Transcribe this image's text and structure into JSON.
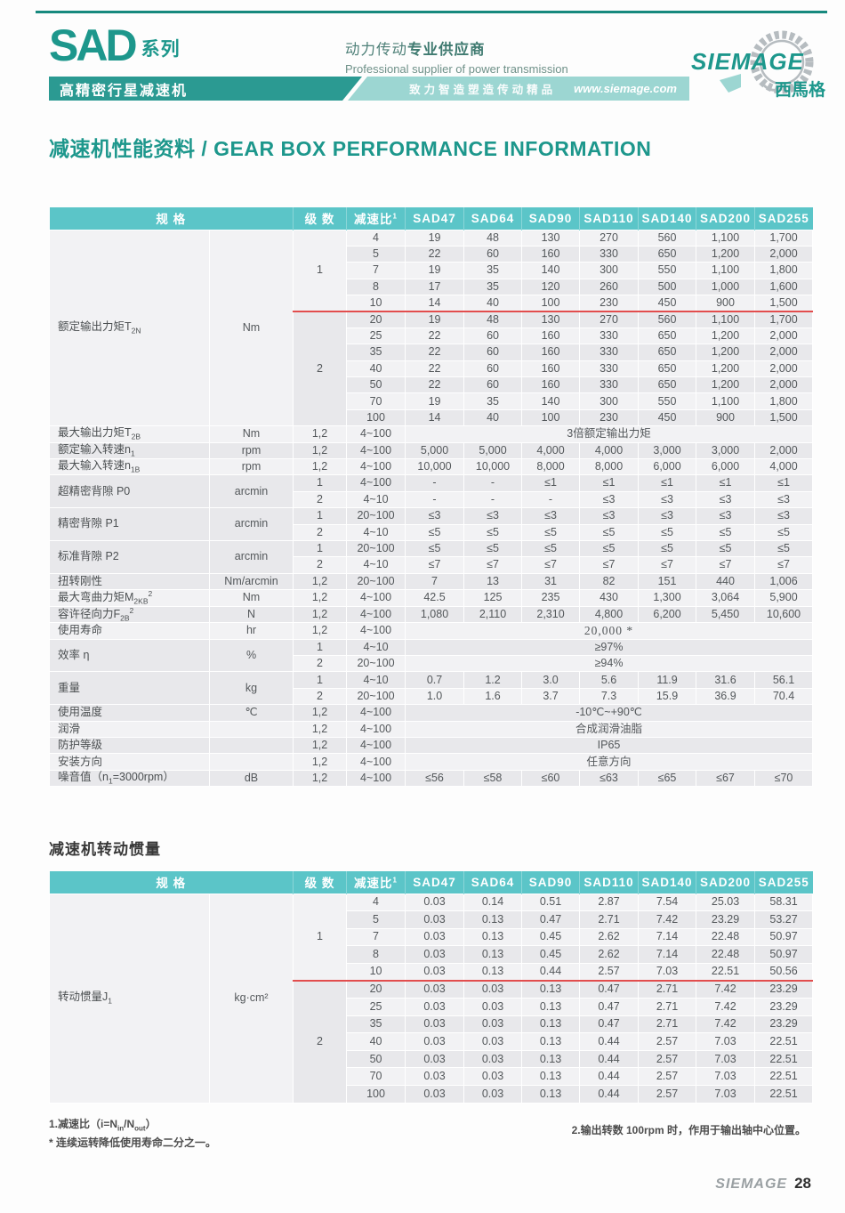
{
  "header": {
    "series": "SAD",
    "series_label": "系列",
    "supplier_zh": "动力传动",
    "supplier_zh_bold": "专业供应商",
    "supplier_en": "Professional supplier of power transmission",
    "banner_product": "高精密行星减速机",
    "banner_slogan": "致力智造塑造传动精品",
    "banner_url": "www.siemage.com",
    "logo_name": "SIEMAGE",
    "logo_cn": "西馬格",
    "logo_icon": "gear-icon"
  },
  "section_title": "减速机性能资料 / GEAR BOX PERFORMANCE INFORMATION",
  "inertia_title": "减速机转动惯量",
  "columns": {
    "spec": "规  格",
    "stage": "级  数",
    "ratio": "减速比",
    "ratio_sup": "1",
    "models": [
      "SAD47",
      "SAD64",
      "SAD90",
      "SAD110",
      "SAD140",
      "SAD200",
      "SAD255"
    ]
  },
  "perf_table": {
    "sections": [
      {
        "label": [
          {
            "t": "额定输出力矩T"
          },
          {
            "sub": "2N"
          }
        ],
        "unit": "Nm",
        "groups": [
          {
            "stage": "1",
            "sep": true,
            "rows": [
              {
                "ratio": "4",
                "values": [
                  "19",
                  "48",
                  "130",
                  "270",
                  "560",
                  "1,100",
                  "1,700"
                ]
              },
              {
                "ratio": "5",
                "values": [
                  "22",
                  "60",
                  "160",
                  "330",
                  "650",
                  "1,200",
                  "2,000"
                ]
              },
              {
                "ratio": "7",
                "values": [
                  "19",
                  "35",
                  "140",
                  "300",
                  "550",
                  "1,100",
                  "1,800"
                ]
              },
              {
                "ratio": "8",
                "values": [
                  "17",
                  "35",
                  "120",
                  "260",
                  "500",
                  "1,000",
                  "1,600"
                ]
              },
              {
                "ratio": "10",
                "values": [
                  "14",
                  "40",
                  "100",
                  "230",
                  "450",
                  "900",
                  "1,500"
                ]
              }
            ]
          },
          {
            "stage": "2",
            "rows": [
              {
                "ratio": "20",
                "values": [
                  "19",
                  "48",
                  "130",
                  "270",
                  "560",
                  "1,100",
                  "1,700"
                ]
              },
              {
                "ratio": "25",
                "values": [
                  "22",
                  "60",
                  "160",
                  "330",
                  "650",
                  "1,200",
                  "2,000"
                ]
              },
              {
                "ratio": "35",
                "values": [
                  "22",
                  "60",
                  "160",
                  "330",
                  "650",
                  "1,200",
                  "2,000"
                ]
              },
              {
                "ratio": "40",
                "values": [
                  "22",
                  "60",
                  "160",
                  "330",
                  "650",
                  "1,200",
                  "2,000"
                ]
              },
              {
                "ratio": "50",
                "values": [
                  "22",
                  "60",
                  "160",
                  "330",
                  "650",
                  "1,200",
                  "2,000"
                ]
              },
              {
                "ratio": "70",
                "values": [
                  "19",
                  "35",
                  "140",
                  "300",
                  "550",
                  "1,100",
                  "1,800"
                ]
              },
              {
                "ratio": "100",
                "values": [
                  "14",
                  "40",
                  "100",
                  "230",
                  "450",
                  "900",
                  "1,500"
                ]
              }
            ]
          }
        ]
      },
      {
        "label": [
          {
            "t": "最大输出力矩T"
          },
          {
            "sub": "2B"
          }
        ],
        "unit": "Nm",
        "rows": [
          {
            "stage": "1,2",
            "ratio": "4~100",
            "span": "3倍额定输出力矩"
          }
        ]
      },
      {
        "label": [
          {
            "t": "额定输入转速n"
          },
          {
            "sub": "1"
          }
        ],
        "unit": "rpm",
        "rows": [
          {
            "stage": "1,2",
            "ratio": "4~100",
            "values": [
              "5,000",
              "5,000",
              "4,000",
              "4,000",
              "3,000",
              "3,000",
              "2,000"
            ]
          }
        ]
      },
      {
        "label": [
          {
            "t": "最大输入转速n"
          },
          {
            "sub": "1B"
          }
        ],
        "unit": "rpm",
        "rows": [
          {
            "stage": "1,2",
            "ratio": "4~100",
            "values": [
              "10,000",
              "10,000",
              "8,000",
              "8,000",
              "6,000",
              "6,000",
              "4,000"
            ]
          }
        ]
      },
      {
        "label": [
          {
            "t": "超精密背隙 P0"
          }
        ],
        "unit": "arcmin",
        "rows": [
          {
            "stage": "1",
            "ratio": "4~100",
            "values": [
              "-",
              "-",
              "≤1",
              "≤1",
              "≤1",
              "≤1",
              "≤1"
            ]
          },
          {
            "stage": "2",
            "ratio": "4~10",
            "values": [
              "-",
              "-",
              "-",
              "≤3",
              "≤3",
              "≤3",
              "≤3"
            ]
          }
        ]
      },
      {
        "label": [
          {
            "t": "精密背隙 P1"
          }
        ],
        "unit": "arcmin",
        "rows": [
          {
            "stage": "1",
            "ratio": "20~100",
            "values": [
              "≤3",
              "≤3",
              "≤3",
              "≤3",
              "≤3",
              "≤3",
              "≤3"
            ]
          },
          {
            "stage": "2",
            "ratio": "4~10",
            "values": [
              "≤5",
              "≤5",
              "≤5",
              "≤5",
              "≤5",
              "≤5",
              "≤5"
            ]
          }
        ]
      },
      {
        "label": [
          {
            "t": "标准背隙 P2"
          }
        ],
        "unit": "arcmin",
        "rows": [
          {
            "stage": "1",
            "ratio": "20~100",
            "values": [
              "≤5",
              "≤5",
              "≤5",
              "≤5",
              "≤5",
              "≤5",
              "≤5"
            ]
          },
          {
            "stage": "2",
            "ratio": "4~10",
            "values": [
              "≤7",
              "≤7",
              "≤7",
              "≤7",
              "≤7",
              "≤7",
              "≤7"
            ]
          }
        ]
      },
      {
        "label": [
          {
            "t": "扭转刚性"
          }
        ],
        "unit": "Nm/arcmin",
        "rows": [
          {
            "stage": "1,2",
            "ratio": "20~100",
            "values": [
              "7",
              "13",
              "31",
              "82",
              "151",
              "440",
              "1,006"
            ]
          }
        ]
      },
      {
        "label": [
          {
            "t": "最大弯曲力矩M"
          },
          {
            "sub": "2KB"
          },
          {
            "sup": "2"
          }
        ],
        "unit": "Nm",
        "rows": [
          {
            "stage": "1,2",
            "ratio": "4~100",
            "values": [
              "42.5",
              "125",
              "235",
              "430",
              "1,300",
              "3,064",
              "5,900"
            ]
          }
        ]
      },
      {
        "label": [
          {
            "t": "容许径向力F"
          },
          {
            "sub": "2B"
          },
          {
            "sup": "2"
          }
        ],
        "unit": "N",
        "rows": [
          {
            "stage": "1,2",
            "ratio": "4~100",
            "values": [
              "1,080",
              "2,110",
              "2,310",
              "4,800",
              "6,200",
              "5,450",
              "10,600"
            ]
          }
        ]
      },
      {
        "label": [
          {
            "t": "使用寿命"
          }
        ],
        "unit": "hr",
        "rows": [
          {
            "stage": "1,2",
            "ratio": "4~100",
            "span": "20,000 *",
            "serif": true
          }
        ]
      },
      {
        "label": [
          {
            "t": "效率 η"
          }
        ],
        "unit": "%",
        "rows": [
          {
            "stage": "1",
            "ratio": "4~10",
            "span": "≥97%"
          },
          {
            "stage": "2",
            "ratio": "20~100",
            "span": "≥94%"
          }
        ]
      },
      {
        "label": [
          {
            "t": "重量"
          }
        ],
        "unit": "kg",
        "rows": [
          {
            "stage": "1",
            "ratio": "4~10",
            "values": [
              "0.7",
              "1.2",
              "3.0",
              "5.6",
              "11.9",
              "31.6",
              "56.1"
            ]
          },
          {
            "stage": "2",
            "ratio": "20~100",
            "values": [
              "1.0",
              "1.6",
              "3.7",
              "7.3",
              "15.9",
              "36.9",
              "70.4"
            ]
          }
        ]
      },
      {
        "label": [
          {
            "t": "使用温度"
          }
        ],
        "unit": "℃",
        "rows": [
          {
            "stage": "1,2",
            "ratio": "4~100",
            "span": "-10℃~+90℃"
          }
        ]
      },
      {
        "label": [
          {
            "t": "润滑"
          }
        ],
        "unit": "",
        "rows": [
          {
            "stage": "1,2",
            "ratio": "4~100",
            "span": "合成润滑油脂"
          }
        ]
      },
      {
        "label": [
          {
            "t": "防护等级"
          }
        ],
        "unit": "",
        "rows": [
          {
            "stage": "1,2",
            "ratio": "4~100",
            "span": "IP65"
          }
        ]
      },
      {
        "label": [
          {
            "t": "安装方向"
          }
        ],
        "unit": "",
        "rows": [
          {
            "stage": "1,2",
            "ratio": "4~100",
            "span": "任意方向"
          }
        ]
      },
      {
        "label": [
          {
            "t": "噪音值（n"
          },
          {
            "sub": "1"
          },
          {
            "t": "=3000rpm）"
          }
        ],
        "unit": "dB",
        "rows": [
          {
            "stage": "1,2",
            "ratio": "4~100",
            "values": [
              "≤56",
              "≤58",
              "≤60",
              "≤63",
              "≤65",
              "≤67",
              "≤70"
            ]
          }
        ]
      }
    ]
  },
  "inertia_table": {
    "sections": [
      {
        "label": [
          {
            "t": "转动惯量J"
          },
          {
            "sub": "1"
          }
        ],
        "unit": "kg·cm²",
        "groups": [
          {
            "stage": "1",
            "sep": true,
            "rows": [
              {
                "ratio": "4",
                "values": [
                  "0.03",
                  "0.14",
                  "0.51",
                  "2.87",
                  "7.54",
                  "25.03",
                  "58.31"
                ]
              },
              {
                "ratio": "5",
                "values": [
                  "0.03",
                  "0.13",
                  "0.47",
                  "2.71",
                  "7.42",
                  "23.29",
                  "53.27"
                ]
              },
              {
                "ratio": "7",
                "values": [
                  "0.03",
                  "0.13",
                  "0.45",
                  "2.62",
                  "7.14",
                  "22.48",
                  "50.97"
                ]
              },
              {
                "ratio": "8",
                "values": [
                  "0.03",
                  "0.13",
                  "0.45",
                  "2.62",
                  "7.14",
                  "22.48",
                  "50.97"
                ]
              },
              {
                "ratio": "10",
                "values": [
                  "0.03",
                  "0.13",
                  "0.44",
                  "2.57",
                  "7.03",
                  "22.51",
                  "50.56"
                ]
              }
            ]
          },
          {
            "stage": "2",
            "rows": [
              {
                "ratio": "20",
                "values": [
                  "0.03",
                  "0.03",
                  "0.13",
                  "0.47",
                  "2.71",
                  "7.42",
                  "23.29"
                ]
              },
              {
                "ratio": "25",
                "values": [
                  "0.03",
                  "0.03",
                  "0.13",
                  "0.47",
                  "2.71",
                  "7.42",
                  "23.29"
                ]
              },
              {
                "ratio": "35",
                "values": [
                  "0.03",
                  "0.03",
                  "0.13",
                  "0.47",
                  "2.71",
                  "7.42",
                  "23.29"
                ]
              },
              {
                "ratio": "40",
                "values": [
                  "0.03",
                  "0.03",
                  "0.13",
                  "0.44",
                  "2.57",
                  "7.03",
                  "22.51"
                ]
              },
              {
                "ratio": "50",
                "values": [
                  "0.03",
                  "0.03",
                  "0.13",
                  "0.44",
                  "2.57",
                  "7.03",
                  "22.51"
                ]
              },
              {
                "ratio": "70",
                "values": [
                  "0.03",
                  "0.03",
                  "0.13",
                  "0.44",
                  "2.57",
                  "7.03",
                  "22.51"
                ]
              },
              {
                "ratio": "100",
                "values": [
                  "0.03",
                  "0.03",
                  "0.13",
                  "0.44",
                  "2.57",
                  "7.03",
                  "22.51"
                ]
              }
            ]
          }
        ]
      }
    ]
  },
  "footnotes": {
    "left1_parts": [
      {
        "t": "1.减速比（i=N"
      },
      {
        "sub": "in"
      },
      {
        "t": "/N"
      },
      {
        "sub": "out"
      },
      {
        "t": "）"
      }
    ],
    "left2": "* 连续运转降低使用寿命二分之一。",
    "right": "2.输出转数 100rpm 时，作用于输出轴中心位置。"
  },
  "footer": {
    "brand": "SIEMAGE",
    "page": "28"
  },
  "colors": {
    "brand_teal": "#1d978c",
    "banner_dark_teal": "#2b9a92",
    "banner_light_teal": "#9cd6d2",
    "table_header_teal": "#5bc5c8",
    "row_light": "#f2f2f4",
    "row_dark": "#e8e8eb",
    "separator_red": "#e24d4d",
    "top_rule": "#17897e"
  }
}
